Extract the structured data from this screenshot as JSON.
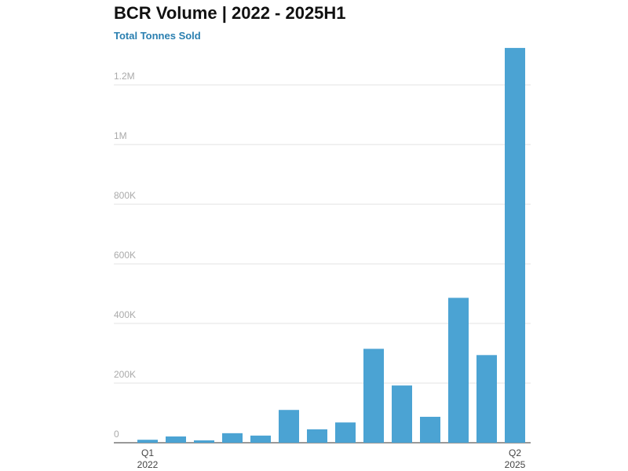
{
  "chart_data": {
    "type": "bar",
    "title": "BCR Volume | 2022 - 2025H1",
    "subtitle": "Total Tonnes Sold",
    "categories": [
      "Q1 2022",
      null,
      null,
      null,
      null,
      null,
      null,
      null,
      null,
      null,
      null,
      null,
      null,
      "Q2 2025"
    ],
    "values": [
      10000,
      21000,
      8000,
      32000,
      24000,
      110000,
      45000,
      68000,
      315000,
      192000,
      87000,
      486000,
      294000,
      1324000
    ],
    "color": "#4ba3d3",
    "ylim": [
      0,
      1340000
    ],
    "yticks": [
      0,
      {
        "value": 200000,
        "label": "200K"
      },
      {
        "value": 400000,
        "label": "400K"
      },
      {
        "value": 600000,
        "label": "600K"
      },
      {
        "value": 800000,
        "label": "800K"
      },
      {
        "value": 1000000,
        "label": "1M"
      },
      {
        "value": 1200000,
        "label": "1.2M"
      }
    ],
    "grid": true
  }
}
